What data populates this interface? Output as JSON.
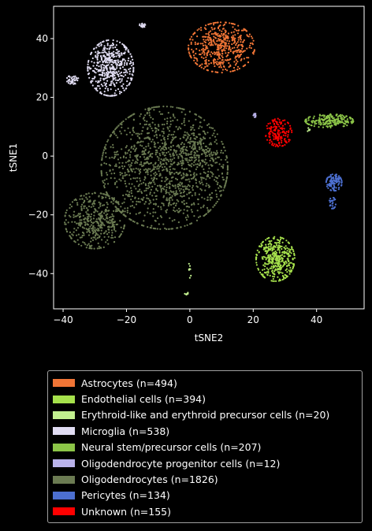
{
  "chart_data": {
    "type": "scatter",
    "xlabel": "tSNE2",
    "ylabel": "tSNE1",
    "xlim": [
      -43,
      55
    ],
    "ylim": [
      -52,
      51
    ],
    "xticks": [
      -40,
      -20,
      0,
      20,
      40
    ],
    "yticks": [
      -40,
      -20,
      0,
      20,
      40
    ],
    "grid": false,
    "legend_position": "below",
    "series": [
      {
        "name": "Astrocytes (n=494)",
        "color": "#f07536",
        "clusters": [
          {
            "cx": 10,
            "cy": 37,
            "sx": 5.5,
            "sy": 4.5,
            "n": 494
          }
        ]
      },
      {
        "name": "Endothelial cells (n=394)",
        "color": "#a6e14c",
        "clusters": [
          {
            "cx": 27,
            "cy": -35,
            "sx": 3.2,
            "sy": 4.0,
            "n": 394
          }
        ]
      },
      {
        "name": "Erythroid-like and erythroid precursor cells (n=20)",
        "color": "#c2f08f",
        "clusters": [
          {
            "cx": -1,
            "cy": -47,
            "sx": 0.4,
            "sy": 0.3,
            "n": 6
          },
          {
            "cx": 0,
            "cy": -39,
            "sx": 0.3,
            "sy": 1.5,
            "n": 8
          },
          {
            "cx": 38,
            "cy": 9,
            "sx": 1.0,
            "sy": 0.8,
            "n": 6
          }
        ]
      },
      {
        "name": "Microglia (n=538)",
        "color": "#e0dcf2",
        "clusters": [
          {
            "cx": -25,
            "cy": 30,
            "sx": 3.8,
            "sy": 5.0,
            "n": 480
          },
          {
            "cx": -37,
            "cy": 26,
            "sx": 1.0,
            "sy": 0.8,
            "n": 40
          },
          {
            "cx": -15,
            "cy": 44.5,
            "sx": 0.5,
            "sy": 0.4,
            "n": 18
          }
        ]
      },
      {
        "name": "Neural stem/precursor cells (n=207)",
        "color": "#8cc548",
        "clusters": [
          {
            "cx": 44,
            "cy": 12,
            "sx": 4.0,
            "sy": 1.2,
            "n": 207
          }
        ]
      },
      {
        "name": "Oligodendrocyte progenitor cells (n=12)",
        "color": "#b9b2ea",
        "clusters": [
          {
            "cx": 20.5,
            "cy": 14,
            "sx": 0.3,
            "sy": 0.4,
            "n": 12
          }
        ]
      },
      {
        "name": "Oligodendrocytes (n=1826)",
        "color": "#6b7b52",
        "clusters": [
          {
            "cx": -8,
            "cy": -4,
            "sx": 10.5,
            "sy": 11.0,
            "n": 1300
          },
          {
            "cx": -30,
            "cy": -22,
            "sx": 5.0,
            "sy": 5.0,
            "n": 420
          },
          {
            "cx": 3,
            "cy": 2,
            "sx": 3.0,
            "sy": 5.0,
            "n": 106
          }
        ]
      },
      {
        "name": "Pericytes (n=134)",
        "color": "#4c6fd0",
        "clusters": [
          {
            "cx": 45.5,
            "cy": -9,
            "sx": 1.3,
            "sy": 1.5,
            "n": 110
          },
          {
            "cx": 45,
            "cy": -16,
            "sx": 0.6,
            "sy": 1.0,
            "n": 24
          }
        ]
      },
      {
        "name": "Unknown (n=155)",
        "color": "#ff0000",
        "clusters": [
          {
            "cx": 28,
            "cy": 8,
            "sx": 2.2,
            "sy": 2.5,
            "n": 155
          }
        ]
      }
    ]
  }
}
